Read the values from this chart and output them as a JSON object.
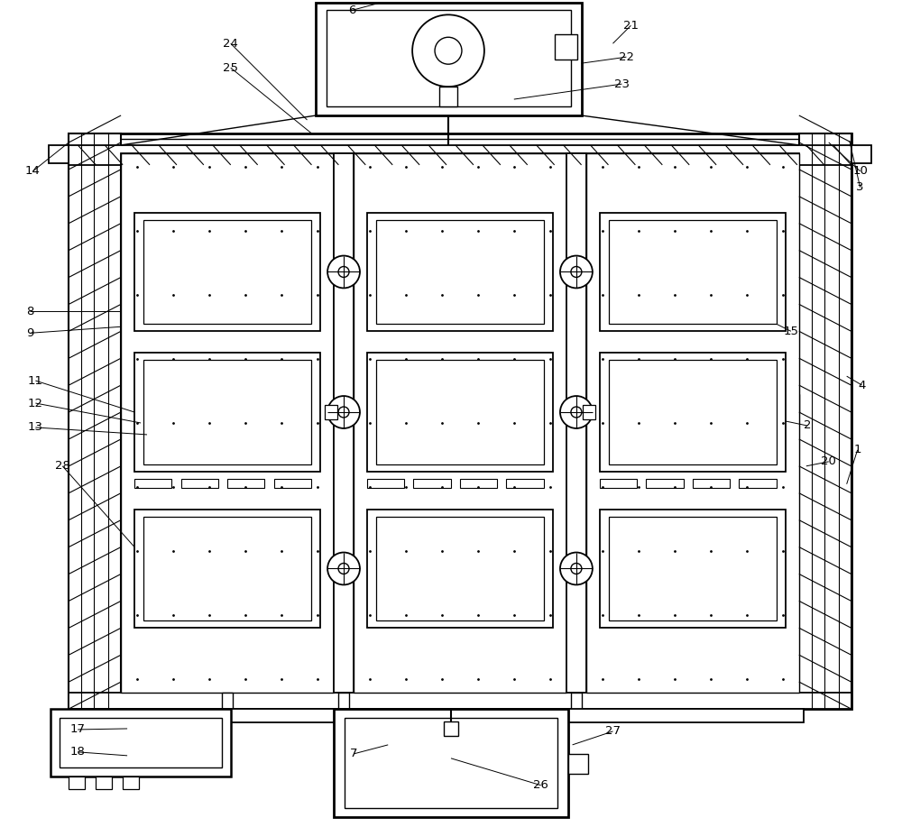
{
  "fig_width": 10.0,
  "fig_height": 9.17,
  "dpi": 100,
  "bg_color": "white",
  "line_color": "black",
  "lw": 1.3
}
